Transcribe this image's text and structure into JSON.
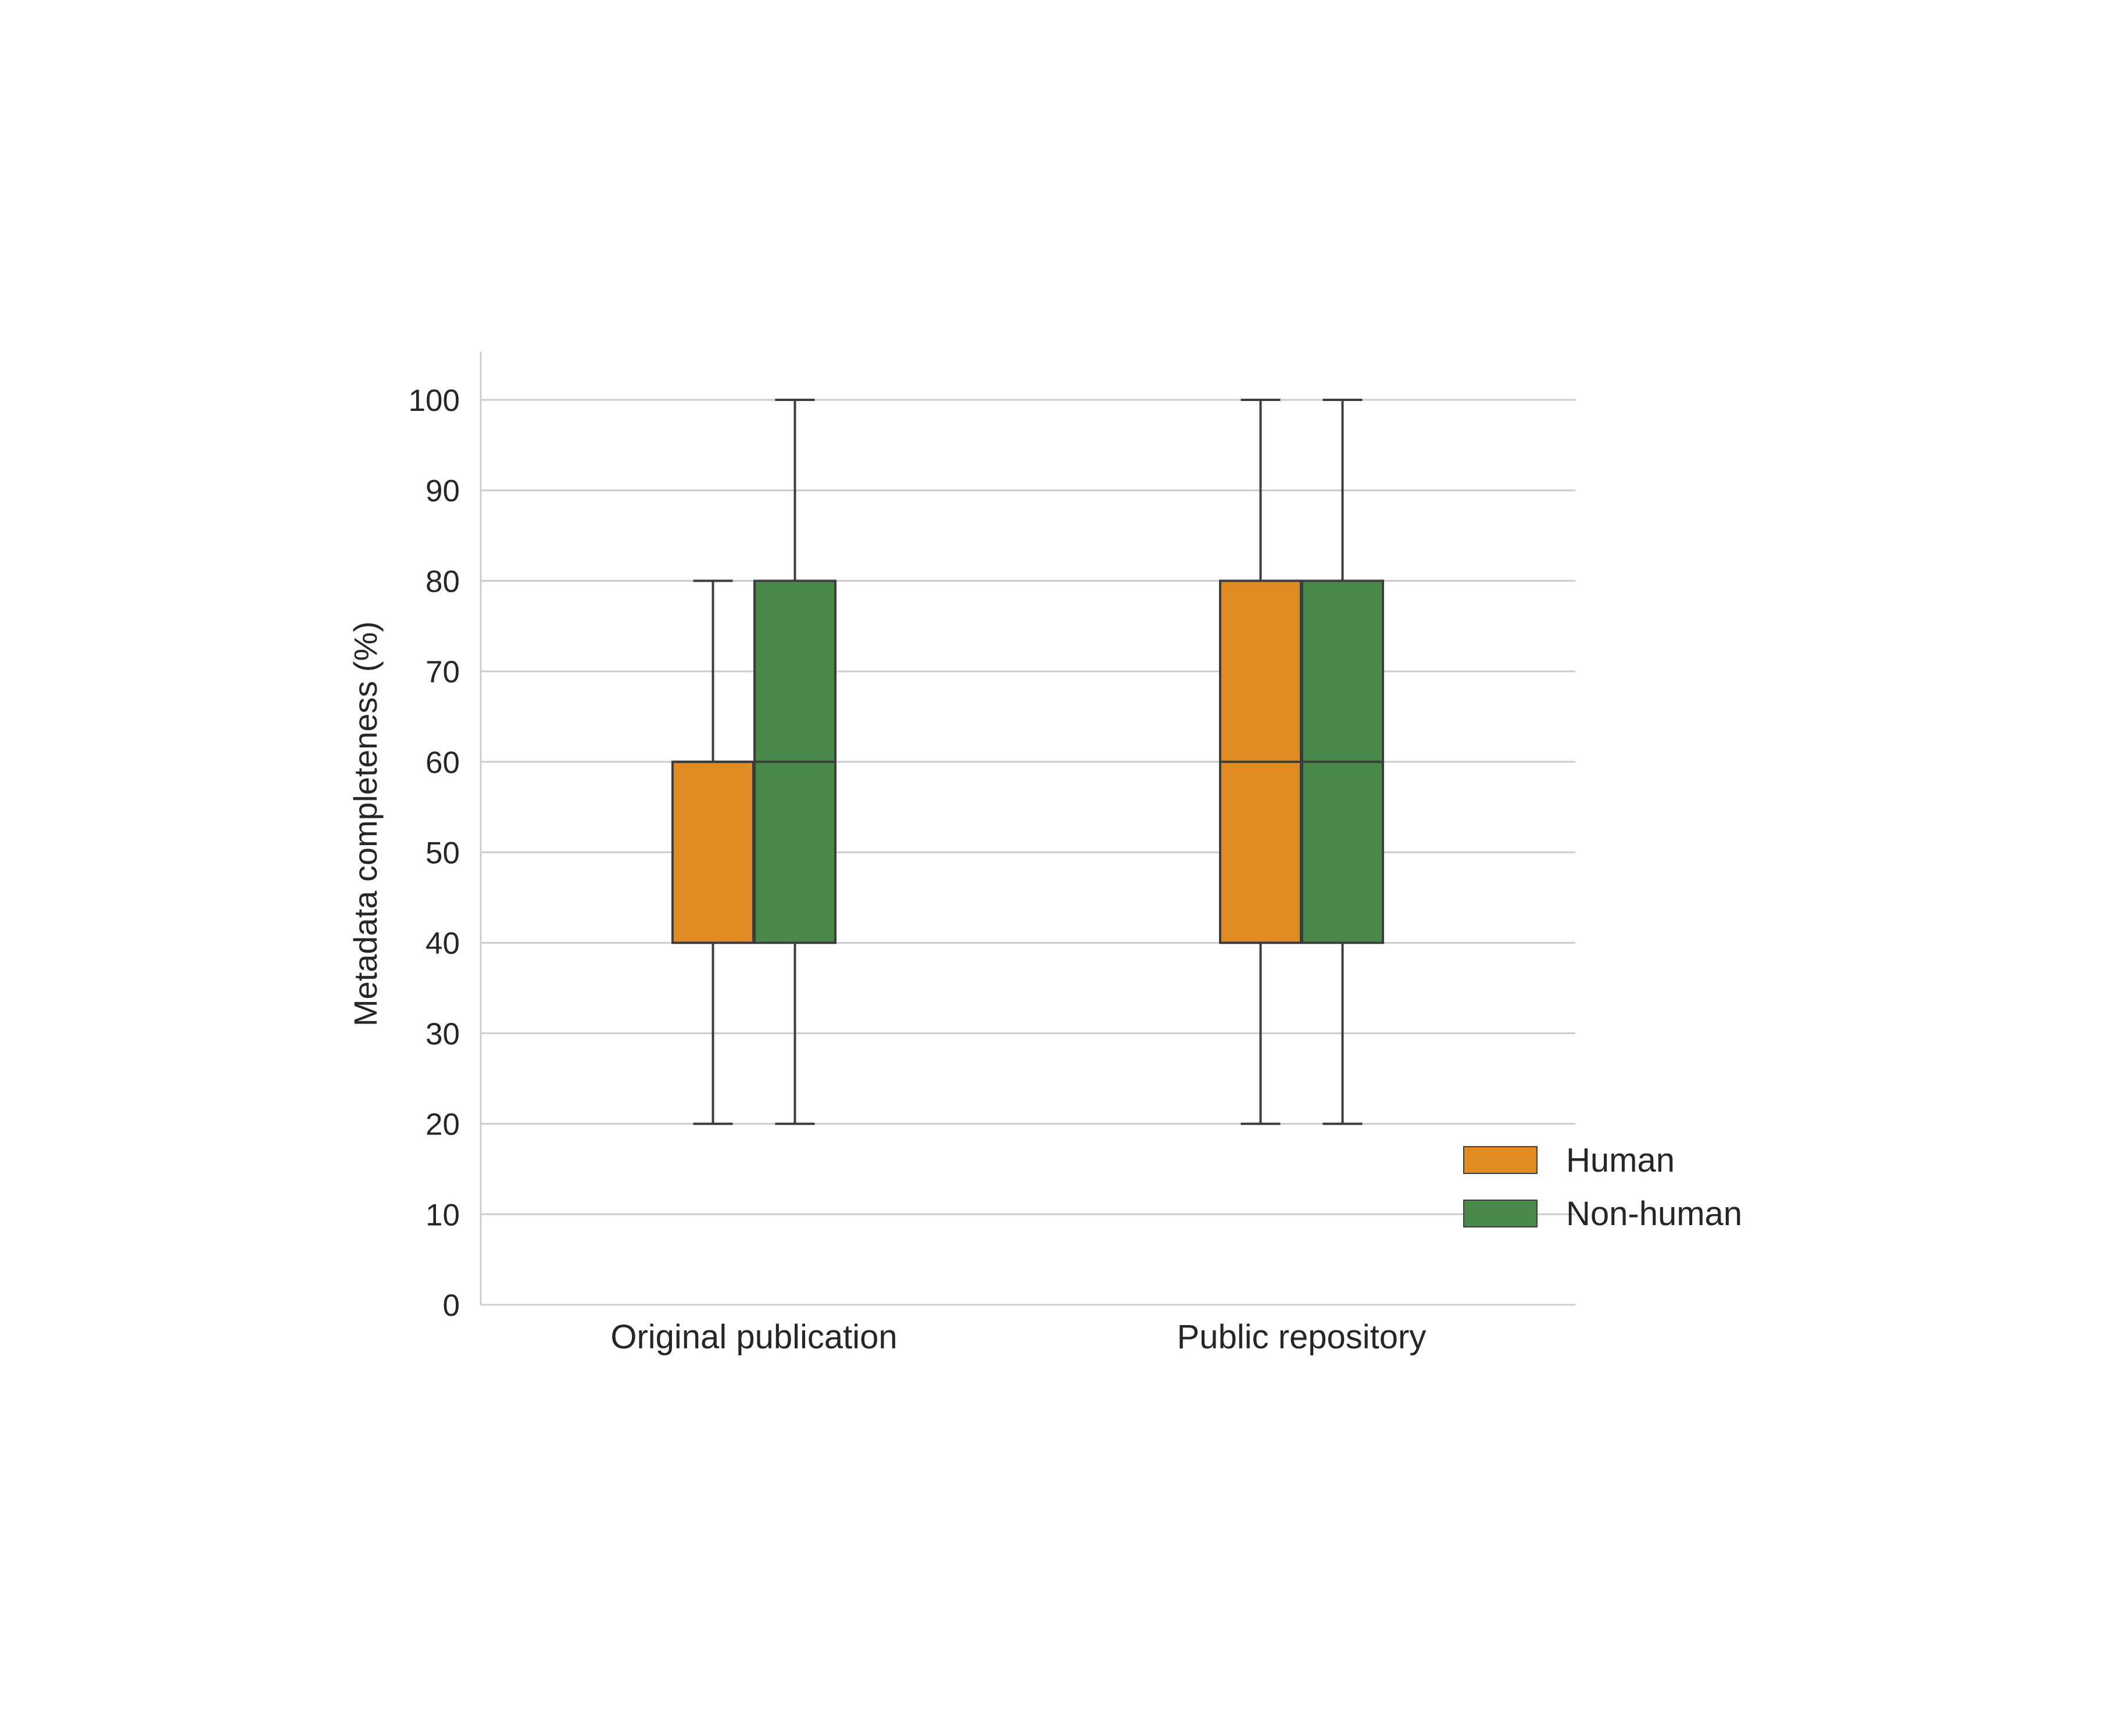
{
  "chart_data": {
    "type": "box",
    "ylabel": "Metadata completeness (%)",
    "xlabel": "",
    "ylim": [
      0,
      105
    ],
    "yticks": [
      0,
      10,
      20,
      30,
      40,
      50,
      60,
      70,
      80,
      90,
      100
    ],
    "categories": [
      "Original publication",
      "Public repository"
    ],
    "grid": "horizontal",
    "legend_position": "bottom-right, outside",
    "series": [
      {
        "name": "Human",
        "color": "#e08a22",
        "boxes": [
          {
            "whisker_low": 20,
            "q1": 40,
            "median": 60,
            "q3": 60,
            "whisker_high": 80
          },
          {
            "whisker_low": 20,
            "q1": 40,
            "median": 60,
            "q3": 80,
            "whisker_high": 100
          }
        ]
      },
      {
        "name": "Non-human",
        "color": "#48894a",
        "boxes": [
          {
            "whisker_low": 20,
            "q1": 40,
            "median": 60,
            "q3": 80,
            "whisker_high": 100
          },
          {
            "whisker_low": 20,
            "q1": 40,
            "median": 60,
            "q3": 80,
            "whisker_high": 100
          }
        ]
      }
    ]
  }
}
